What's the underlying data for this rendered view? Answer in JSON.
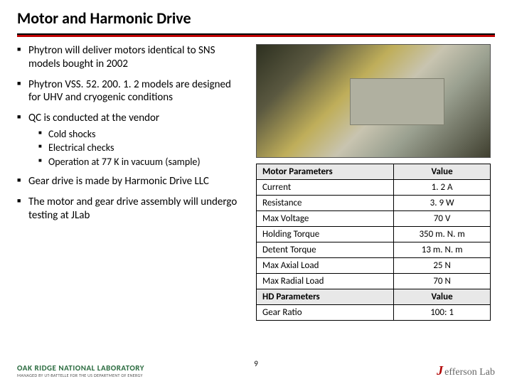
{
  "title": "Motor and Harmonic Drive",
  "bullets": {
    "b1": "Phytron will deliver motors identical to SNS models bought in 2002",
    "b2": "Phytron VSS. 52. 200. 1. 2 models are designed for UHV and cryogenic conditions",
    "b3": "QC is conducted at the vendor",
    "b3a": "Cold shocks",
    "b3b": "Electrical checks",
    "b3c": "Operation at 77 K in vacuum (sample)",
    "b4": "Gear drive is made by Harmonic Drive LLC",
    "b5": "The motor and gear drive assembly will undergo testing at JLab"
  },
  "table": {
    "header_param": "Motor Parameters",
    "header_value": "Value",
    "rows": [
      {
        "param": "Current",
        "value": "1. 2 A"
      },
      {
        "param": "Resistance",
        "value": "3. 9 W"
      },
      {
        "param": "Max Voltage",
        "value": "70 V"
      },
      {
        "param": "Holding Torque",
        "value": "350 m. N. m"
      },
      {
        "param": "Detent Torque",
        "value": "13 m. N. m"
      },
      {
        "param": "Max Axial Load",
        "value": "25 N"
      },
      {
        "param": "Max Radial Load",
        "value": "70 N"
      }
    ],
    "hd_header_param": "HD Parameters",
    "hd_header_value": "Value",
    "hd_rows": [
      {
        "param": "Gear Ratio",
        "value": "100: 1"
      }
    ]
  },
  "footer": {
    "ornl_name": "OAK RIDGE NATIONAL LABORATORY",
    "ornl_sub": "MANAGED BY UT-BATTELLE FOR THE US DEPARTMENT OF ENERGY",
    "page": "9",
    "jlab_j": "J",
    "jlab_rest": "efferson Lab"
  },
  "colors": {
    "rule_red": "#c00000",
    "rule_dark": "#000000",
    "table_header_bg": "#e8e8e8",
    "ornl_green": "#2a6b3f",
    "jlab_red": "#b00000"
  }
}
